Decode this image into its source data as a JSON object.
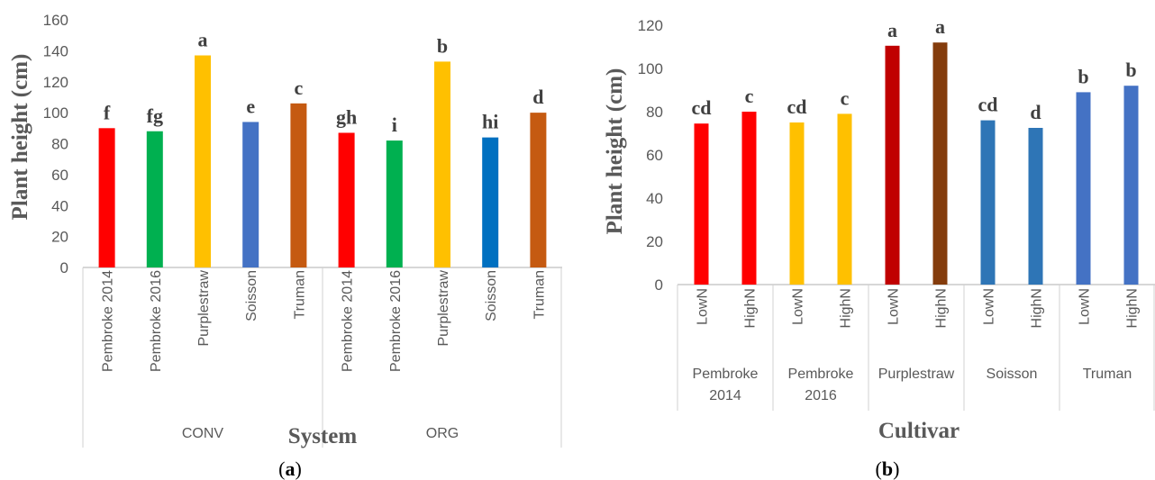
{
  "chart_data": [
    {
      "type": "bar",
      "panel_label": "a",
      "xlabel": "System",
      "ylabel": "Plant height (cm)",
      "ylim": [
        0,
        160
      ],
      "yticks": [
        0,
        20,
        40,
        60,
        80,
        100,
        120,
        140,
        160
      ],
      "groups": [
        {
          "name": "CONV",
          "categories": [
            "Pembroke 2014",
            "Pembroke 2016",
            "Purplestraw",
            "Soisson",
            "Truman"
          ]
        },
        {
          "name": "ORG",
          "categories": [
            "Pembroke 2014",
            "Pembroke 2016",
            "Purplestraw",
            "Soisson",
            "Truman"
          ]
        }
      ],
      "values": [
        90,
        88,
        137,
        94,
        106,
        87,
        82,
        133,
        84,
        100
      ],
      "letters": [
        "f",
        "fg",
        "a",
        "e",
        "c",
        "gh",
        "i",
        "b",
        "hi",
        "d"
      ],
      "colors": [
        "#ff0000",
        "#00b050",
        "#ffc000",
        "#4472c4",
        "#c55a11",
        "#ff0000",
        "#00b050",
        "#ffc000",
        "#0070c0",
        "#c55a11"
      ],
      "grid": false,
      "legend": "none"
    },
    {
      "type": "bar",
      "panel_label": "b",
      "xlabel": "Cultivar",
      "ylabel": "Plant height (cm)",
      "ylim": [
        0,
        120
      ],
      "yticks": [
        0,
        20,
        40,
        60,
        80,
        100,
        120
      ],
      "groups": [
        {
          "name": "Pembroke 2014",
          "categories": [
            "LowN",
            "HighN"
          ]
        },
        {
          "name": "Pembroke 2016",
          "categories": [
            "LowN",
            "HighN"
          ]
        },
        {
          "name": "Purplestraw",
          "categories": [
            "LowN",
            "HighN"
          ]
        },
        {
          "name": "Soisson",
          "categories": [
            "LowN",
            "HighN"
          ]
        },
        {
          "name": "Truman",
          "categories": [
            "LowN",
            "HighN"
          ]
        }
      ],
      "values": [
        74.5,
        80,
        75,
        79,
        110.5,
        112,
        76,
        72.5,
        89,
        92
      ],
      "letters": [
        "cd",
        "c",
        "cd",
        "c",
        "a",
        "a",
        "cd",
        "d",
        "b",
        "b"
      ],
      "colors": [
        "#ff0000",
        "#ff0000",
        "#ffc000",
        "#ffc000",
        "#c00000",
        "#843c0c",
        "#2e75b6",
        "#2e75b6",
        "#4472c4",
        "#4472c4"
      ],
      "grid": false,
      "legend": "none"
    }
  ]
}
